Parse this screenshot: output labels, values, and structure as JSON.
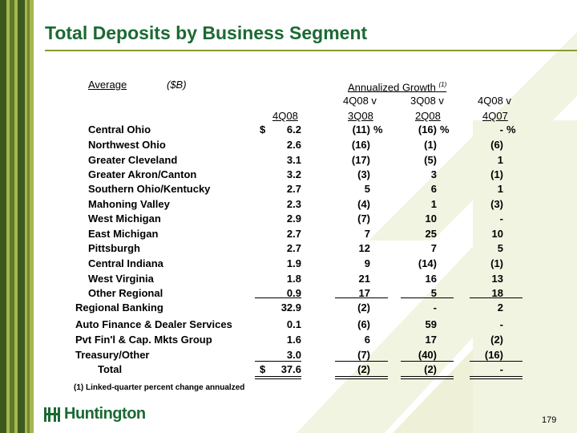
{
  "title": "Total Deposits by Business Segment",
  "header": {
    "average": "Average",
    "units": "($B)",
    "growth_title": "Annualized Growth",
    "growth_footnote_marker": "(1)",
    "col_4q08": "4Q08",
    "col_a_top": "4Q08 v",
    "col_a_bot": "3Q08",
    "col_b_top": "3Q08 v",
    "col_b_bot": "2Q08",
    "col_c_top": "4Q08 v",
    "col_c_bot": "4Q07"
  },
  "rows": [
    {
      "label": "Central Ohio",
      "dollar": "$",
      "value": "6.2",
      "g1": "(11)",
      "g1pct": "%",
      "g2": "(16)",
      "g2pct": "%",
      "g3": "-",
      "g3pct": "%"
    },
    {
      "label": "Northwest Ohio",
      "value": "2.6",
      "g1": "(16)",
      "g2": "(1)",
      "g3": "(6)"
    },
    {
      "label": "Greater Cleveland",
      "value": "3.1",
      "g1": "(17)",
      "g2": "(5)",
      "g3": "1"
    },
    {
      "label": "Greater Akron/Canton",
      "value": "3.2",
      "g1": "(3)",
      "g2": "3",
      "g3": "(1)"
    },
    {
      "label": "Southern Ohio/Kentucky",
      "value": "2.7",
      "g1": "5",
      "g2": "6",
      "g3": "1"
    },
    {
      "label": "Mahoning Valley",
      "value": "2.3",
      "g1": "(4)",
      "g2": "1",
      "g3": "(3)"
    },
    {
      "label": "West Michigan",
      "value": "2.9",
      "g1": "(7)",
      "g2": "10",
      "g3": "-"
    },
    {
      "label": "East Michigan",
      "value": "2.7",
      "g1": "7",
      "g2": "25",
      "g3": "10"
    },
    {
      "label": "Pittsburgh",
      "value": "2.7",
      "g1": "12",
      "g2": "7",
      "g3": "5"
    },
    {
      "label": "Central Indiana",
      "value": "1.9",
      "g1": "9",
      "g2": "(14)",
      "g3": "(1)"
    },
    {
      "label": "West Virginia",
      "value": "1.8",
      "g1": "21",
      "g2": "16",
      "g3": "13"
    },
    {
      "label": "Other Regional",
      "value": "0.9",
      "g1": "17",
      "g2": "5",
      "g3": "18"
    },
    {
      "label": "Regional Banking",
      "value": "32.9",
      "g1": "(2)",
      "g2": "-",
      "g3": "2"
    },
    {
      "label": "Auto Finance & Dealer Services",
      "value": "0.1",
      "g1": "(6)",
      "g2": "59",
      "g3": "-"
    },
    {
      "label": "Pvt Fin'l & Cap. Mkts Group",
      "value": "1.6",
      "g1": "6",
      "g2": "17",
      "g3": "(2)"
    },
    {
      "label": "Treasury/Other",
      "value": "3.0",
      "g1": "(7)",
      "g2": "(40)",
      "g3": "(16)"
    },
    {
      "label": "Total",
      "dollar": "$",
      "value": "37.6",
      "g1": "(2)",
      "g2": "(2)",
      "g3": "-"
    }
  ],
  "footnote": "(1)  Linked-quarter percent change annualzed",
  "logo_text": "Huntington",
  "page_number": "179",
  "colors": {
    "title_green": "#1b6a33",
    "stripe_dark": "#3d5a1e",
    "stripe_light": "#a7b552",
    "deco": "#eef0d8"
  }
}
